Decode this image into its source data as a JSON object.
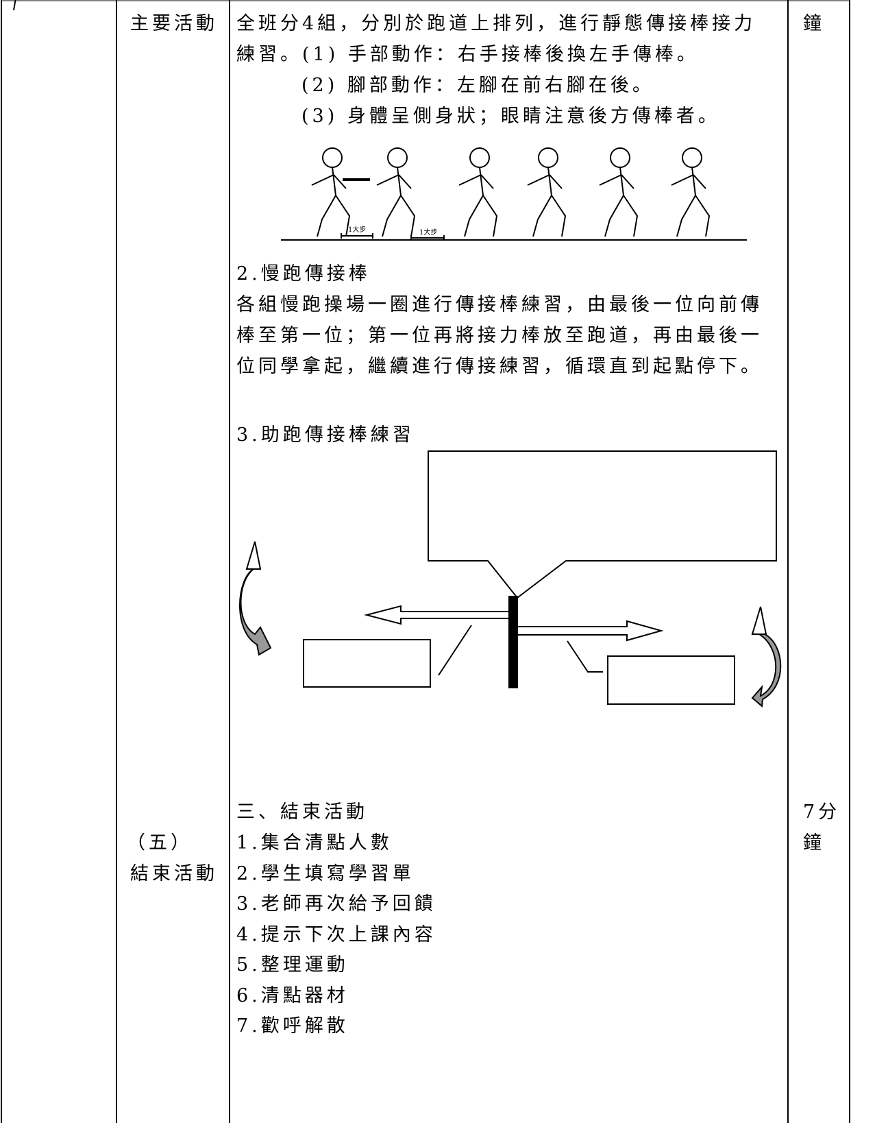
{
  "cells": {
    "main_activity": "主要活動",
    "time_top": "鐘",
    "end_activity": [
      "（五）",
      "結束活動"
    ],
    "time_end": [
      "7分",
      "鐘"
    ]
  },
  "content": {
    "intro_lines": [
      "全班分4組，分別於跑道上排列，進行靜態傳接棒接力",
      "練習。(1) 手部動作：右手接棒後換左手傳棒。",
      "(2) 腳部動作：左腳在前右腳在後。",
      "(3) 身體呈側身狀；眼睛注意後方傳棒者。"
    ],
    "figure_labels": [
      "1大步",
      "1大步"
    ],
    "section2_title": "2.慢跑傳接棒",
    "section2_lines": [
      "各組慢跑操場一圈進行傳接棒練習，由最後一位向前傳",
      "棒至第一位；第一位再將接力棒放至跑道，再由最後一",
      "位同學拿起，繼續進行傳接練習，循環直到起點停下。"
    ],
    "section3_title": "3.助跑傳接棒練習",
    "end_title": "三、結束活動",
    "end_items": [
      "1.集合清點人數",
      "2.學生填寫學習單",
      "3.老師再次給予回饋",
      "4.提示下次上課內容",
      "5.整理運動",
      "6.清點器材",
      "7.歡呼解散"
    ]
  }
}
